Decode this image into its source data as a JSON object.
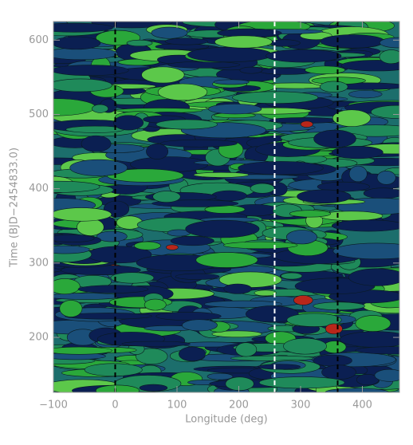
{
  "chart_data": {
    "type": "contour",
    "x_label": "Longitude (deg)",
    "y_label": "Time (BJD−2454833.0)",
    "xlim": [
      -100,
      460
    ],
    "ylim": [
      126,
      625
    ],
    "xticks": [
      {
        "value": -100,
        "label": "−100"
      },
      0,
      100,
      200,
      300,
      400
    ],
    "yticks": [
      200,
      300,
      400,
      500,
      600
    ],
    "vlines": [
      {
        "x": 0,
        "color": "#000000"
      },
      {
        "x": 258,
        "color": "#ffffff"
      },
      {
        "x": 360,
        "color": "#000000"
      }
    ]
  }
}
